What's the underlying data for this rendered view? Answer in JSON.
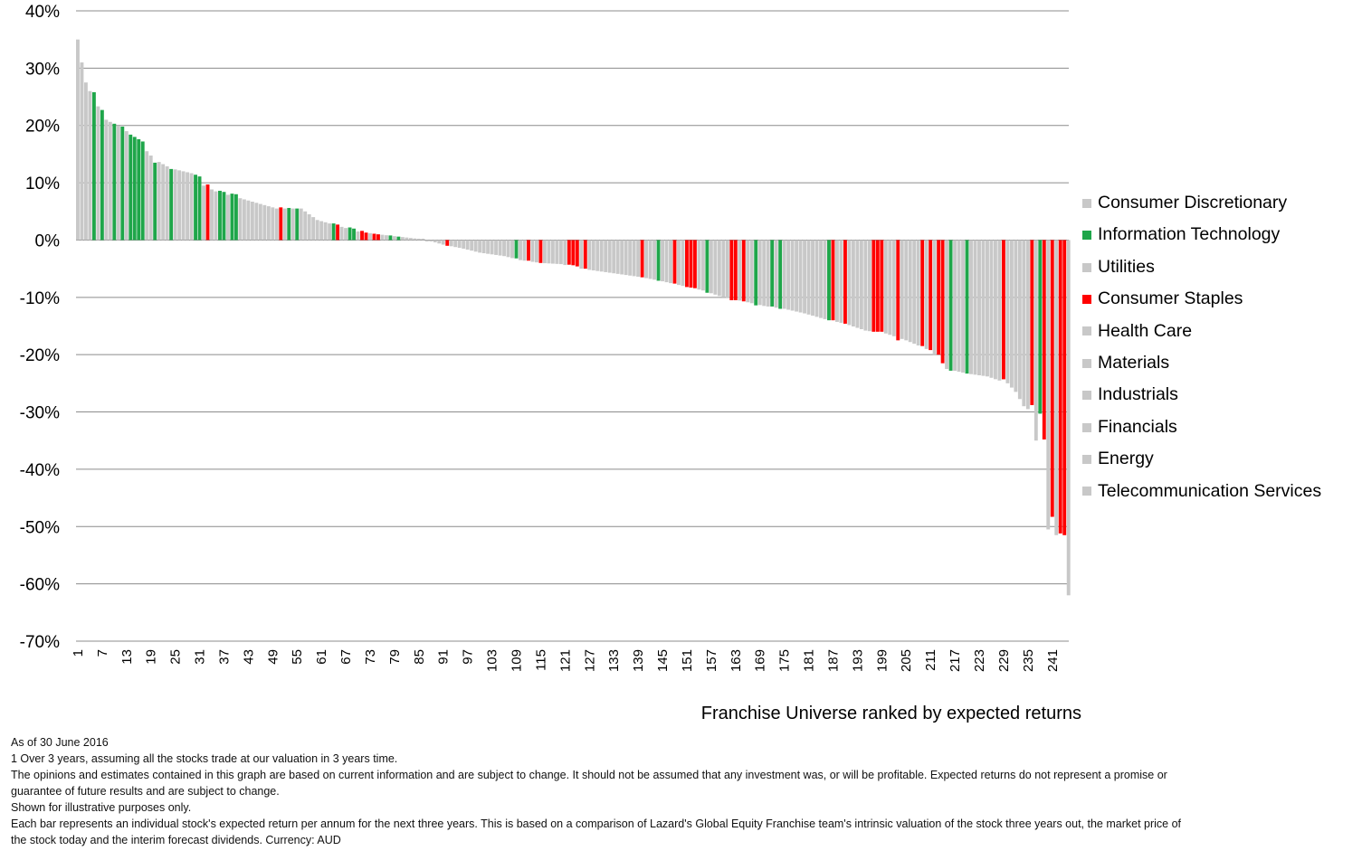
{
  "chart_data": {
    "type": "bar",
    "xlabel": "Franchise Universe ranked by expected returns",
    "ylabel": "",
    "ylim": [
      -70,
      40
    ],
    "y_ticks": [
      "40%",
      "30%",
      "20%",
      "10%",
      "0%",
      "-10%",
      "-20%",
      "-30%",
      "-40%",
      "-50%",
      "-60%",
      "-70%"
    ],
    "x_ticks": [
      "1",
      "7",
      "13",
      "19",
      "25",
      "31",
      "37",
      "43",
      "49",
      "55",
      "61",
      "67",
      "73",
      "79",
      "85",
      "91",
      "97",
      "103",
      "109",
      "115",
      "121",
      "127",
      "133",
      "139",
      "145",
      "151",
      "157",
      "163",
      "169",
      "175",
      "181",
      "187",
      "193",
      "199",
      "205",
      "211",
      "217",
      "223",
      "229",
      "235",
      "241"
    ],
    "n_stocks": 245,
    "grid": true,
    "legend_position": "right",
    "colors": {
      "other": "#c8c8c8",
      "it": "#1fa64a",
      "staples": "#ff0000"
    },
    "anchors": [
      [
        1,
        35
      ],
      [
        2,
        31
      ],
      [
        3,
        27.5
      ],
      [
        5,
        24.5
      ],
      [
        8,
        21
      ],
      [
        12,
        19.5
      ],
      [
        16,
        17.5
      ],
      [
        18,
        15.5
      ],
      [
        20,
        14
      ],
      [
        24,
        12.5
      ],
      [
        30,
        11.5
      ],
      [
        32,
        9.5
      ],
      [
        35,
        8.5
      ],
      [
        40,
        7.5
      ],
      [
        45,
        6.5
      ],
      [
        50,
        5.5
      ],
      [
        56,
        5.5
      ],
      [
        60,
        3.5
      ],
      [
        65,
        2.5
      ],
      [
        70,
        1.5
      ],
      [
        75,
        1
      ],
      [
        80,
        0.6
      ],
      [
        85,
        0.2
      ],
      [
        88,
        -0.2
      ],
      [
        91,
        -0.8
      ],
      [
        96,
        -1.5
      ],
      [
        100,
        -2.2
      ],
      [
        106,
        -2.8
      ],
      [
        110,
        -3.5
      ],
      [
        115,
        -4
      ],
      [
        120,
        -4.2
      ],
      [
        125,
        -5
      ],
      [
        130,
        -5.5
      ],
      [
        135,
        -6
      ],
      [
        140,
        -6.5
      ],
      [
        145,
        -7.2
      ],
      [
        150,
        -8
      ],
      [
        155,
        -8.8
      ],
      [
        160,
        -10
      ],
      [
        165,
        -10.7
      ],
      [
        170,
        -11.5
      ],
      [
        175,
        -12
      ],
      [
        180,
        -12.8
      ],
      [
        185,
        -13.8
      ],
      [
        190,
        -14.6
      ],
      [
        195,
        -15.8
      ],
      [
        200,
        -16.3
      ],
      [
        205,
        -17.5
      ],
      [
        210,
        -19
      ],
      [
        212,
        -20
      ],
      [
        215,
        -22.5
      ],
      [
        220,
        -23.3
      ],
      [
        225,
        -23.8
      ],
      [
        230,
        -25
      ],
      [
        232,
        -26.5
      ],
      [
        234,
        -29
      ],
      [
        236,
        -30
      ],
      [
        237,
        -35
      ],
      [
        238,
        -43
      ],
      [
        239,
        -48
      ],
      [
        240,
        -50.5
      ],
      [
        241,
        -51
      ],
      [
        242,
        -51.5
      ],
      [
        243,
        -51.8
      ],
      [
        244,
        -62
      ]
    ],
    "overrides": [
      [
        1,
        35.0,
        "other"
      ],
      [
        5,
        25.8,
        "it"
      ],
      [
        7,
        22.7,
        "it"
      ],
      [
        10,
        20.3,
        "it"
      ],
      [
        12,
        19.8,
        "it"
      ],
      [
        14,
        18.4,
        "it"
      ],
      [
        15,
        18.0,
        "it"
      ],
      [
        16,
        17.6,
        "it"
      ],
      [
        17,
        17.2,
        "it"
      ],
      [
        20,
        13.5,
        "it"
      ],
      [
        24,
        12.4,
        "it"
      ],
      [
        30,
        11.4,
        "it"
      ],
      [
        31,
        11.1,
        "it"
      ],
      [
        33,
        9.7,
        "staples"
      ],
      [
        36,
        8.6,
        "it"
      ],
      [
        37,
        8.4,
        "it"
      ],
      [
        39,
        8.1,
        "it"
      ],
      [
        40,
        8.0,
        "it"
      ],
      [
        51,
        5.7,
        "staples"
      ],
      [
        53,
        5.6,
        "it"
      ],
      [
        55,
        5.5,
        "it"
      ],
      [
        64,
        2.9,
        "it"
      ],
      [
        65,
        2.7,
        "staples"
      ],
      [
        68,
        2.2,
        "it"
      ],
      [
        69,
        2.0,
        "it"
      ],
      [
        71,
        1.6,
        "staples"
      ],
      [
        72,
        1.3,
        "staples"
      ],
      [
        74,
        1.1,
        "staples"
      ],
      [
        75,
        1.0,
        "staples"
      ],
      [
        78,
        0.8,
        "it"
      ],
      [
        80,
        0.6,
        "it"
      ],
      [
        92,
        -1.0,
        "staples"
      ],
      [
        109,
        -3.2,
        "it"
      ],
      [
        112,
        -3.6,
        "staples"
      ],
      [
        115,
        -4.0,
        "staples"
      ],
      [
        122,
        -4.3,
        "staples"
      ],
      [
        123,
        -4.4,
        "staples"
      ],
      [
        124,
        -4.6,
        "staples"
      ],
      [
        126,
        -5.0,
        "staples"
      ],
      [
        140,
        -6.5,
        "staples"
      ],
      [
        144,
        -7.1,
        "it"
      ],
      [
        148,
        -7.6,
        "staples"
      ],
      [
        151,
        -8.2,
        "staples"
      ],
      [
        152,
        -8.3,
        "staples"
      ],
      [
        153,
        -8.4,
        "staples"
      ],
      [
        156,
        -9.2,
        "it"
      ],
      [
        162,
        -10.5,
        "staples"
      ],
      [
        163,
        -10.5,
        "staples"
      ],
      [
        165,
        -10.7,
        "staples"
      ],
      [
        168,
        -11.4,
        "it"
      ],
      [
        172,
        -11.6,
        "it"
      ],
      [
        174,
        -12.0,
        "it"
      ],
      [
        186,
        -14.0,
        "it"
      ],
      [
        187,
        -14.0,
        "staples"
      ],
      [
        190,
        -14.6,
        "staples"
      ],
      [
        197,
        -16.0,
        "staples"
      ],
      [
        198,
        -16.0,
        "staples"
      ],
      [
        199,
        -16.0,
        "staples"
      ],
      [
        203,
        -17.5,
        "staples"
      ],
      [
        209,
        -18.5,
        "staples"
      ],
      [
        211,
        -19.2,
        "staples"
      ],
      [
        213,
        -20.0,
        "staples"
      ],
      [
        214,
        -21.5,
        "staples"
      ],
      [
        216,
        -22.8,
        "it"
      ],
      [
        220,
        -23.3,
        "it"
      ],
      [
        229,
        -24.3,
        "staples"
      ],
      [
        236,
        -28.8,
        "staples"
      ],
      [
        238,
        -30.3,
        "it"
      ],
      [
        239,
        -34.8,
        "staples"
      ],
      [
        241,
        -48.3,
        "staples"
      ],
      [
        243,
        -51.2,
        "staples"
      ],
      [
        244,
        -51.5,
        "staples"
      ]
    ]
  },
  "legend": [
    {
      "label": "Consumer Discretionary",
      "color": "#c8c8c8"
    },
    {
      "label": "Information Technology",
      "color": "#1fa64a"
    },
    {
      "label": "Utilities",
      "color": "#c8c8c8"
    },
    {
      "label": "Consumer Staples",
      "color": "#ff0000"
    },
    {
      "label": "Health Care",
      "color": "#c8c8c8"
    },
    {
      "label": "Materials",
      "color": "#c8c8c8"
    },
    {
      "label": "Industrials",
      "color": "#c8c8c8"
    },
    {
      "label": "Financials",
      "color": "#c8c8c8"
    },
    {
      "label": "Energy",
      "color": "#c8c8c8"
    },
    {
      "label": "Telecommunication Services",
      "color": "#c8c8c8"
    }
  ],
  "notes": {
    "date": "As of 30 June 2016",
    "footnote_1": "1   Over 3 years, assuming all the stocks trade at our valuation in 3 years time.",
    "opinions": "The opinions and estimates contained in this graph are based on current information and are subject to change. It should not be assumed that any investment was, or will be profitable. Expected returns do not represent a promise or guarantee of future results and are subject to change.",
    "illustrative": "Shown for illustrative purposes only.",
    "each_bar": "Each bar represents an individual stock's expected return per annum for the next three years. This is based on a comparison of Lazard's Global Equity Franchise team's intrinsic valuation of the stock three years out, the market price of the stock today and the interim forecast dividends. Currency: AUD"
  }
}
